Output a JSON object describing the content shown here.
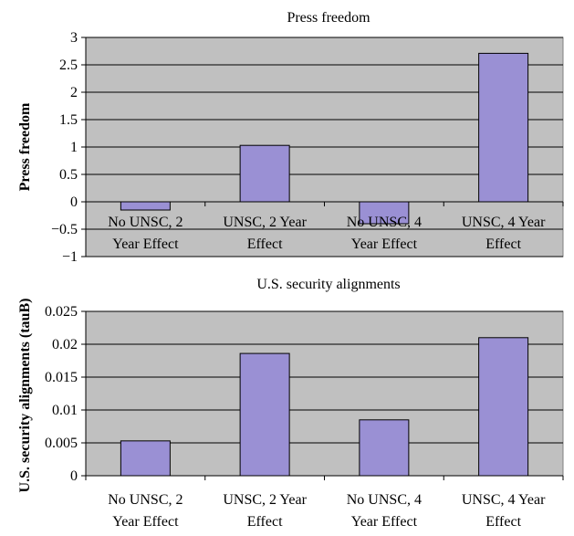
{
  "colors": {
    "plot_bg": "#c0c0c0",
    "bar": "#9a90d4",
    "bar_stroke": "#000000",
    "grid": "#000000"
  },
  "chart_data": [
    {
      "type": "bar",
      "title": "Press freedom",
      "ylabel": "Press freedom",
      "xlabel": "",
      "ylim": [
        -1,
        3
      ],
      "yticks": [
        3,
        2.5,
        2,
        1.5,
        1,
        0.5,
        0,
        -0.5,
        -1
      ],
      "ytick_labels": [
        "3",
        "2.5",
        "2",
        "1.5",
        "1",
        "0.5",
        "0",
        "−0.5",
        "−1"
      ],
      "categories": [
        [
          "No UNSC, 2",
          "Year Effect"
        ],
        [
          "UNSC, 2 Year",
          "Effect"
        ],
        [
          "No UNSC, 4",
          "Year Effect"
        ],
        [
          "UNSC, 4 Year",
          "Effect"
        ]
      ],
      "values": [
        -0.15,
        1.03,
        -0.4,
        2.71
      ],
      "grid": true
    },
    {
      "type": "bar",
      "title": "U.S. security alignments",
      "ylabel": "U.S. security alignments (tauB)",
      "xlabel": "",
      "ylim": [
        0,
        0.025
      ],
      "yticks": [
        0.025,
        0.02,
        0.015,
        0.01,
        0.005,
        0
      ],
      "ytick_labels": [
        "0.025",
        "0.02",
        "0.015",
        "0.01",
        "0.005",
        "0"
      ],
      "categories": [
        [
          "No UNSC, 2",
          "Year Effect"
        ],
        [
          "UNSC, 2 Year",
          "Effect"
        ],
        [
          "No UNSC, 4",
          "Year Effect"
        ],
        [
          "UNSC, 4 Year",
          "Effect"
        ]
      ],
      "values": [
        0.0053,
        0.0186,
        0.0085,
        0.021
      ],
      "grid": true
    }
  ]
}
